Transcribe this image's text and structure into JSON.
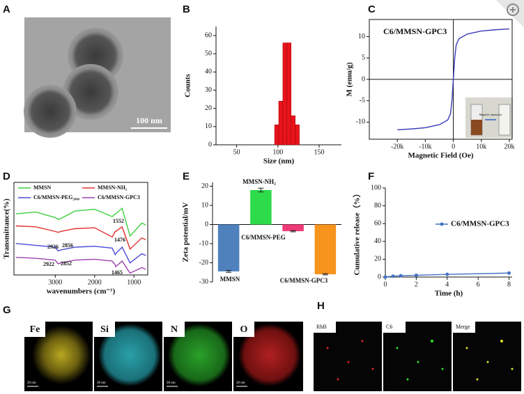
{
  "panels": [
    "A",
    "B",
    "C",
    "D",
    "E",
    "F",
    "G",
    "H"
  ],
  "images": {
    "a_scale": "100 nm",
    "c_inset": "Magnetic separation",
    "g_labels": [
      "Fe",
      "Si",
      "N",
      "O"
    ],
    "g_scale": "20 nm",
    "h_labels": [
      "RhB",
      "C6",
      "Merge"
    ]
  },
  "chart_data": [
    {
      "type": "histogram",
      "xlabel": "Size (nm)",
      "ylabel": "Counts",
      "bins": [
        96,
        101,
        106,
        111,
        116,
        121,
        126
      ],
      "counts": [
        11,
        24,
        56,
        56,
        16,
        11
      ],
      "color": "#e8141c",
      "xlim": [
        25,
        177
      ],
      "xticks": [
        50,
        100,
        150
      ],
      "ylim": [
        0,
        65
      ],
      "yticks": [
        0,
        10,
        20,
        30,
        40,
        50,
        60
      ]
    },
    {
      "type": "line",
      "title": "C6/MMSN-GPC3",
      "xlabel": "Magnetic Field (Oe)",
      "ylabel": "M (emu/g)",
      "x": [
        -20000,
        -15000,
        -10000,
        -5000,
        -2000,
        -1000,
        -500,
        0,
        500,
        1000,
        2000,
        5000,
        10000,
        15000,
        20000
      ],
      "series": [
        {
          "name": null,
          "color": "#3a3ab8",
          "values": [
            -11.8,
            -11.6,
            -11.3,
            -10.6,
            -9.5,
            -8,
            -5,
            0,
            5,
            8,
            9.5,
            10.6,
            11.3,
            11.6,
            11.8
          ]
        }
      ],
      "xlim": [
        -30000,
        21000
      ],
      "xticks": [
        {
          "value": -20000,
          "label": "-20k"
        },
        {
          "value": -10000,
          "label": "-10k"
        },
        0,
        {
          "value": 10000,
          "label": "10k"
        },
        {
          "value": 20000,
          "label": "20k"
        }
      ],
      "ylim": [
        -14,
        14
      ],
      "yticks": [
        -10,
        -5,
        0,
        5,
        10
      ]
    },
    {
      "type": "line",
      "xlabel": "wavenumbers (cm⁻¹)",
      "ylabel": "Transmittance(%)",
      "x": [
        4000,
        3500,
        3000,
        2926,
        2856,
        2500,
        2000,
        1552,
        1476,
        1465,
        1300,
        1100,
        800,
        700
      ],
      "series": [
        {
          "name": "MMSN",
          "color": "#3ccf3c",
          "values": [
            6.6,
            6.8,
            6.2,
            6.0,
            6.1,
            6.9,
            7.1,
            6.3,
            6.6,
            6.6,
            7.2,
            4.2,
            5.6,
            5.4
          ]
        },
        {
          "name": "MMSN-NH₂",
          "color": "#e03030",
          "values": [
            5.3,
            5.2,
            4.7,
            4.6,
            4.7,
            5.0,
            5.1,
            4.1,
            4.7,
            4.7,
            5.2,
            2.8,
            4.0,
            3.8
          ]
        },
        {
          "name": "C6/MMSN-PEG₂₀₀₀",
          "color": "#4a4ad8",
          "values": [
            3.4,
            3.2,
            3.0,
            2.6,
            2.7,
            3.0,
            3.1,
            2.9,
            2.2,
            2.3,
            3.0,
            1.3,
            2.3,
            2.1
          ]
        },
        {
          "name": "C6/MMSN-GPC3",
          "color": "#a040b0",
          "values": [
            1.9,
            1.8,
            1.6,
            1.2,
            1.3,
            1.6,
            1.7,
            1.5,
            1.1,
            0.9,
            1.5,
            0.2,
            0.8,
            0.6
          ]
        }
      ],
      "annotations": [
        "1552",
        "2926",
        "2856",
        "1476",
        "2922",
        "2852",
        "1465"
      ],
      "xlim": [
        4050,
        650
      ],
      "xticks": [
        3000,
        2000,
        1000
      ],
      "ylim": [
        0,
        10
      ]
    },
    {
      "type": "bar",
      "ylabel": "Zeta potential/mV",
      "categories": [
        "MMSN",
        "MMSN-NH₂",
        "C6/MMSN-PEG",
        "C6/MMSN-GPC3"
      ],
      "values": [
        -24.5,
        18,
        -3.5,
        -26
      ],
      "errors": [
        0.5,
        1,
        0.3,
        0.3
      ],
      "colors": [
        "#4f81bd",
        "#2edb4a",
        "#ee3a78",
        "#f7941d"
      ],
      "ylim": [
        -30,
        22
      ],
      "yticks": [
        -30,
        -20,
        -10,
        0,
        10,
        20
      ]
    },
    {
      "type": "line",
      "xlabel": "Time (h)",
      "ylabel": "Cumulative release（%）",
      "x": [
        0,
        0.5,
        1,
        2,
        4,
        8
      ],
      "series": [
        {
          "name": "C6/MMSN-GPC3",
          "color": "#4472c4",
          "values": [
            0,
            1,
            1.5,
            2,
            3,
            4.5
          ]
        }
      ],
      "xlim": [
        0,
        8.2
      ],
      "xticks": [
        0,
        2,
        4,
        6,
        8
      ],
      "ylim": [
        0,
        100
      ],
      "yticks": [
        0,
        20,
        40,
        60,
        80,
        100
      ]
    }
  ]
}
